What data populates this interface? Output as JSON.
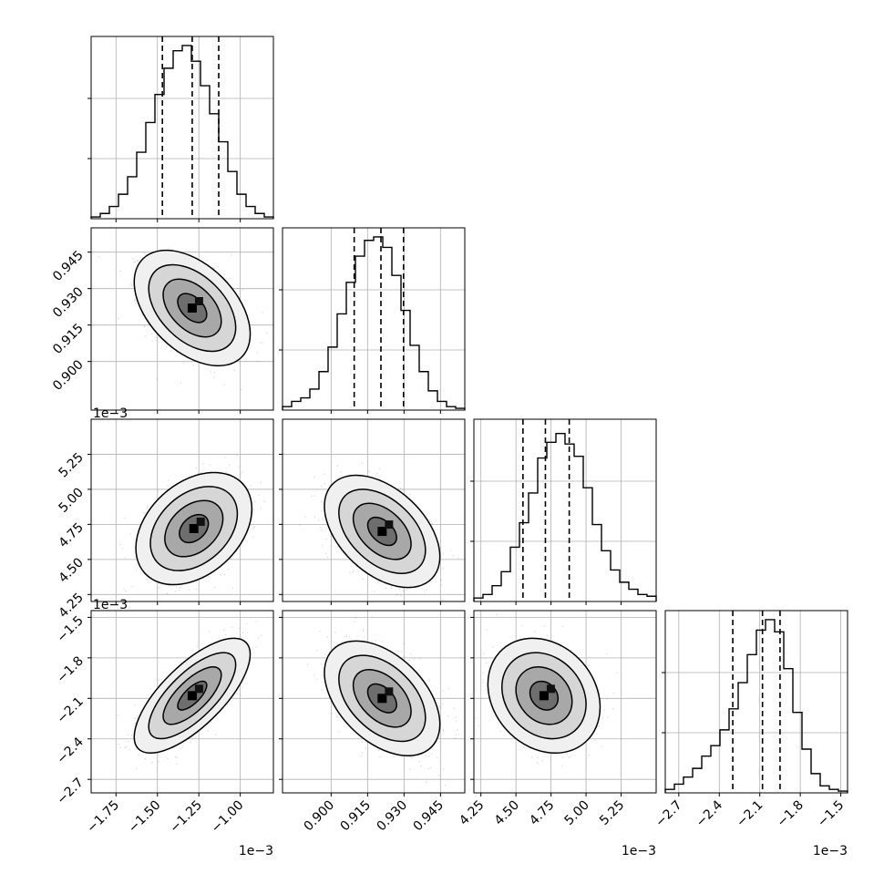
{
  "chart_data": {
    "type": "corner",
    "parameters": [
      {
        "lim": [
          -1.9,
          -0.8
        ],
        "ticks": [
          -1.75,
          -1.5,
          -1.25,
          -1.0
        ],
        "tick_labels": [
          "−1.75",
          "−1.50",
          "−1.25",
          "−1.00"
        ],
        "offset": "1e−3",
        "quantiles": [
          -1.47,
          -1.29,
          -1.13
        ],
        "hist": [
          0.01,
          0.03,
          0.07,
          0.14,
          0.24,
          0.38,
          0.55,
          0.71,
          0.86,
          0.96,
          0.99,
          0.9,
          0.76,
          0.6,
          0.44,
          0.27,
          0.14,
          0.07,
          0.03,
          0.01
        ]
      },
      {
        "lim": [
          0.88,
          0.955
        ],
        "ticks": [
          0.9,
          0.915,
          0.93,
          0.945
        ],
        "tick_labels": [
          "0.900",
          "0.915",
          "0.930",
          "0.945"
        ],
        "offset": "",
        "quantiles": [
          0.9095,
          0.9205,
          0.9298
        ],
        "hist": [
          0.02,
          0.05,
          0.07,
          0.12,
          0.22,
          0.36,
          0.55,
          0.73,
          0.88,
          0.97,
          0.99,
          0.93,
          0.77,
          0.57,
          0.37,
          0.22,
          0.11,
          0.05,
          0.02,
          0.01
        ]
      },
      {
        "lim": [
          4.2,
          5.5
        ],
        "ticks": [
          4.25,
          4.5,
          4.75,
          5.0,
          5.25
        ],
        "tick_labels": [
          "4.25",
          "4.50",
          "4.75",
          "5.00",
          "5.25"
        ],
        "offset": "1e−3",
        "quantiles": [
          4.55,
          4.71,
          4.88
        ],
        "hist": [
          0.02,
          0.04,
          0.09,
          0.17,
          0.31,
          0.45,
          0.62,
          0.82,
          0.91,
          0.96,
          0.9,
          0.83,
          0.65,
          0.44,
          0.29,
          0.18,
          0.11,
          0.07,
          0.04,
          0.03
        ]
      },
      {
        "lim": [
          -2.8,
          -1.45
        ],
        "ticks": [
          -2.7,
          -2.4,
          -2.1,
          -1.8,
          -1.5
        ],
        "tick_labels": [
          "−2.7",
          "−2.4",
          "−2.1",
          "−1.8",
          "−1.5"
        ],
        "offset": "1e−3",
        "quantiles": [
          -2.3,
          -2.08,
          -1.95
        ],
        "hist": [
          0.02,
          0.05,
          0.09,
          0.14,
          0.21,
          0.27,
          0.36,
          0.48,
          0.63,
          0.79,
          0.93,
          0.99,
          0.92,
          0.71,
          0.46,
          0.25,
          0.11,
          0.04,
          0.02,
          0.01
        ]
      }
    ],
    "pairs": [
      {
        "row": 1,
        "col": 0,
        "center": [
          -1.29,
          0.922
        ],
        "sd": [
          0.14,
          0.0095
        ],
        "rho": -0.45
      },
      {
        "row": 2,
        "col": 0,
        "center": [
          -1.28,
          4.72
        ],
        "sd": [
          0.14,
          0.16
        ],
        "rho": 0.35
      },
      {
        "row": 2,
        "col": 1,
        "center": [
          0.921,
          4.7
        ],
        "sd": [
          0.0095,
          0.16
        ],
        "rho": -0.45
      },
      {
        "row": 3,
        "col": 0,
        "center": [
          -1.29,
          -2.08
        ],
        "sd": [
          0.14,
          0.17
        ],
        "rho": 0.72
      },
      {
        "row": 3,
        "col": 1,
        "center": [
          0.921,
          -2.1
        ],
        "sd": [
          0.0095,
          0.17
        ],
        "rho": -0.45
      },
      {
        "row": 3,
        "col": 2,
        "center": [
          4.7,
          -2.08
        ],
        "sd": [
          0.16,
          0.17
        ],
        "rho": -0.2
      }
    ],
    "grid": true,
    "contour_levels_sigma": [
      0.5,
      1.0,
      1.5,
      2.0
    ]
  }
}
